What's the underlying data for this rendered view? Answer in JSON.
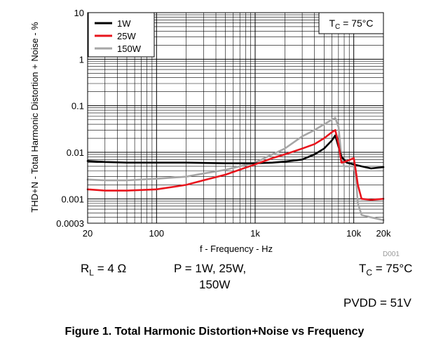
{
  "chart_data": {
    "type": "line",
    "title": "",
    "xlabel": "f - Frequency - Hz",
    "ylabel": "THD+N - Total Harmonic Distortion + Noise - %",
    "x_scale": "log",
    "y_scale": "log",
    "xlim": [
      20,
      20000
    ],
    "ylim": [
      0.0003,
      10
    ],
    "x_ticks": [
      {
        "value": 20,
        "label": "20"
      },
      {
        "value": 100,
        "label": "100"
      },
      {
        "value": 1000,
        "label": "1k"
      },
      {
        "value": 10000,
        "label": "10k"
      },
      {
        "value": 20000,
        "label": "20k"
      }
    ],
    "y_ticks": [
      {
        "value": 10,
        "label": "10"
      },
      {
        "value": 1,
        "label": "1"
      },
      {
        "value": 0.1,
        "label": "0.1"
      },
      {
        "value": 0.01,
        "label": "0.01"
      },
      {
        "value": 0.001,
        "label": "0.001"
      },
      {
        "value": 0.0003,
        "label": "0.0003"
      }
    ],
    "grid": true,
    "legend_position": "top-left",
    "annotation": "TC = 75°C",
    "code": "D001",
    "series": [
      {
        "name": "1W",
        "color": "#000000",
        "x": [
          20,
          30,
          50,
          100,
          200,
          500,
          1000,
          1500,
          2000,
          3000,
          4000,
          5000,
          6000,
          6500,
          7500,
          8500,
          10000,
          12000,
          15000,
          20000
        ],
        "y": [
          0.0065,
          0.0062,
          0.006,
          0.006,
          0.006,
          0.0058,
          0.0058,
          0.006,
          0.0063,
          0.007,
          0.009,
          0.012,
          0.018,
          0.023,
          0.008,
          0.006,
          0.0055,
          0.005,
          0.0045,
          0.0048
        ]
      },
      {
        "name": "25W",
        "color": "#e8141c",
        "x": [
          20,
          30,
          50,
          100,
          200,
          300,
          500,
          1000,
          1500,
          2000,
          3000,
          4000,
          5000,
          6000,
          6500,
          7000,
          7500,
          8000,
          9000,
          10000,
          10500,
          11000,
          12000,
          15000,
          20000
        ],
        "y": [
          0.0016,
          0.0015,
          0.0015,
          0.0016,
          0.002,
          0.0025,
          0.0033,
          0.0055,
          0.0075,
          0.009,
          0.012,
          0.015,
          0.02,
          0.027,
          0.03,
          0.015,
          0.006,
          0.0062,
          0.0068,
          0.0075,
          0.004,
          0.002,
          0.001,
          0.00095,
          0.001
        ]
      },
      {
        "name": "150W",
        "color": "#a6a6a6",
        "x": [
          20,
          30,
          50,
          100,
          200,
          300,
          500,
          1000,
          1500,
          2000,
          3000,
          4000,
          5000,
          6000,
          6500,
          7000,
          7500,
          8000,
          9000,
          10000,
          10500,
          11000,
          12000,
          15000,
          20000
        ],
        "y": [
          0.0026,
          0.0025,
          0.0025,
          0.0027,
          0.003,
          0.0035,
          0.0042,
          0.006,
          0.009,
          0.012,
          0.022,
          0.03,
          0.04,
          0.05,
          0.055,
          0.035,
          0.008,
          0.005,
          0.005,
          0.005,
          0.003,
          0.0008,
          0.00045,
          0.0004,
          0.00035
        ]
      }
    ]
  },
  "conditions": {
    "rl": "RL = 4 Ω",
    "p_line1": "P = 1W, 25W,",
    "p_line2": "150W",
    "tc": "TC = 75°C",
    "pvdd": "PVDD = 51V"
  },
  "caption": "Figure 1. Total Harmonic Distortion+Noise vs Frequency"
}
